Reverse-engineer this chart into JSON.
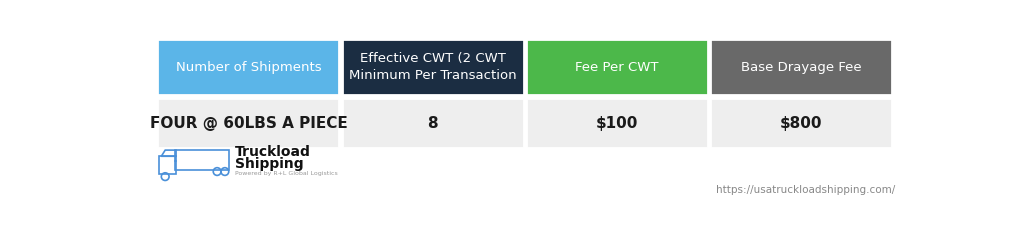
{
  "headers": [
    "Number of Shipments",
    "Effective CWT (2 CWT\nMinimum Per Transaction",
    "Fee Per CWT",
    "Base Drayage Fee"
  ],
  "values": [
    "FOUR @ 60LBS A PIECE",
    "8",
    "$100",
    "$800"
  ],
  "header_colors": [
    "#5bb5e8",
    "#1b2d42",
    "#4cb84a",
    "#696969"
  ],
  "header_text_color": "#ffffff",
  "value_bg_color": "#eeeeee",
  "value_text_color": "#1a1a1a",
  "background_color": "#ffffff",
  "url_text": "https://usatruckloadshipping.com/",
  "url_color": "#888888",
  "logo_text_line1": "Truckload",
  "logo_text_line2": "Shipping",
  "logo_text_color": "#111111",
  "logo_truck_color": "#4a90d9"
}
